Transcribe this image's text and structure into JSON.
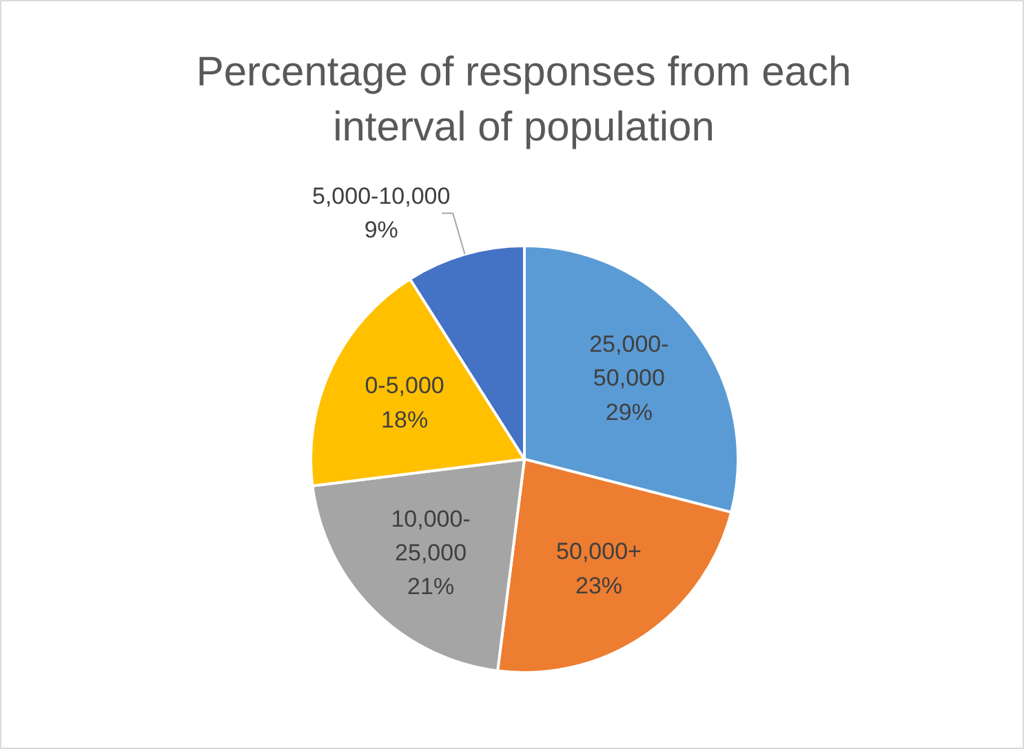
{
  "chart_data": {
    "type": "pie",
    "title": "Percentage of responses from each interval of population",
    "categories": [
      "25,000-50,000",
      "50,000+",
      "10,000-25,000",
      "0-5,000",
      "5,000-10,000"
    ],
    "values": [
      29,
      23,
      21,
      18,
      9
    ],
    "colors": [
      "#5b9bd5",
      "#ed7d31",
      "#a5a5a5",
      "#ffc000",
      "#4472c4"
    ],
    "value_labels": [
      "29%",
      "23%",
      "21%",
      "18%",
      "9%"
    ]
  }
}
